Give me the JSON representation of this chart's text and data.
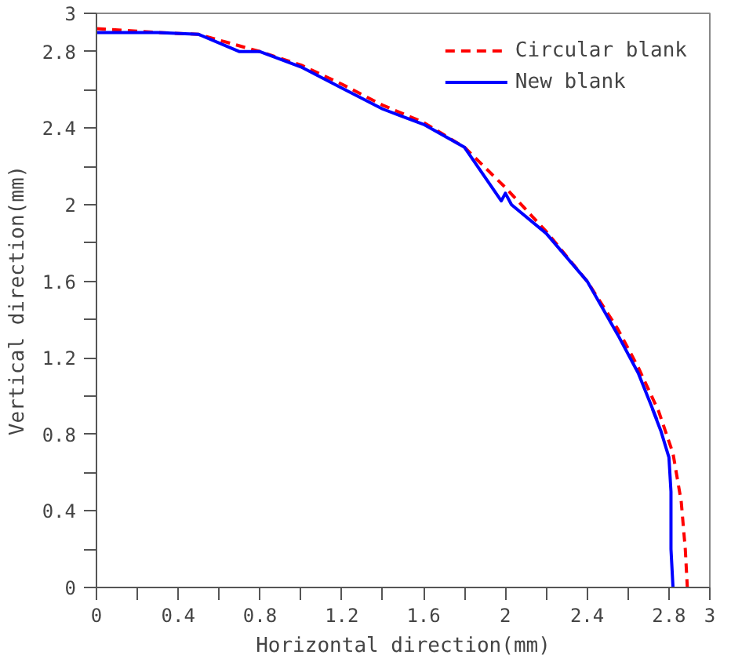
{
  "chart_data": {
    "type": "line",
    "xlabel": "Horizontal direction(mm)",
    "ylabel": "Vertical direction(mm)",
    "xlim": [
      0,
      3
    ],
    "ylim": [
      0,
      3
    ],
    "xticks": [
      0,
      {
        "value": 0.2,
        "label": null
      },
      0.4,
      {
        "value": 0.6,
        "label": null
      },
      0.8,
      {
        "value": 1.0,
        "label": null
      },
      1.2,
      {
        "value": 1.4,
        "label": null
      },
      1.6,
      {
        "value": 1.8,
        "label": null
      },
      2,
      {
        "value": 2.2,
        "label": null
      },
      2.4,
      {
        "value": 2.6,
        "label": null
      },
      2.8,
      3
    ],
    "yticks": [
      0,
      {
        "value": 0.2,
        "label": null
      },
      0.4,
      {
        "value": 0.6,
        "label": null
      },
      0.8,
      {
        "value": 1.0,
        "label": null
      },
      1.2,
      {
        "value": 1.4,
        "label": null
      },
      1.6,
      {
        "value": 1.8,
        "label": null
      },
      2,
      {
        "value": 2.2,
        "label": null
      },
      2.4,
      {
        "value": 2.6,
        "label": null
      },
      2.8,
      3
    ],
    "grid": false,
    "legend": "top right",
    "series": [
      {
        "name": "Circular blank",
        "color": "#ff0000",
        "line_style": "dashed",
        "x": [
          0,
          0.3,
          0.5,
          0.8,
          1.0,
          1.2,
          1.4,
          1.6,
          1.8,
          2.0,
          2.2,
          2.4,
          2.55,
          2.65,
          2.75,
          2.82,
          2.86,
          2.88,
          2.89
        ],
        "values": [
          2.92,
          2.9,
          2.89,
          2.8,
          2.73,
          2.63,
          2.52,
          2.43,
          2.3,
          2.09,
          1.86,
          1.6,
          1.35,
          1.15,
          0.92,
          0.7,
          0.45,
          0.2,
          0
        ]
      },
      {
        "name": "New blank",
        "color": "#0000ff",
        "line_style": "solid",
        "x": [
          0,
          0.3,
          0.5,
          0.7,
          0.8,
          1.0,
          1.2,
          1.4,
          1.6,
          1.8,
          1.98,
          2.0,
          2.03,
          2.2,
          2.4,
          2.55,
          2.65,
          2.74,
          2.72,
          2.76,
          2.8,
          2.81,
          2.81,
          2.82
        ],
        "values": [
          2.9,
          2.9,
          2.89,
          2.8,
          2.8,
          2.72,
          2.61,
          2.5,
          2.42,
          2.3,
          2.02,
          2.06,
          2.0,
          1.85,
          1.6,
          1.32,
          1.12,
          0.88,
          0.93,
          0.82,
          0.68,
          0.5,
          0.2,
          0
        ]
      }
    ]
  }
}
